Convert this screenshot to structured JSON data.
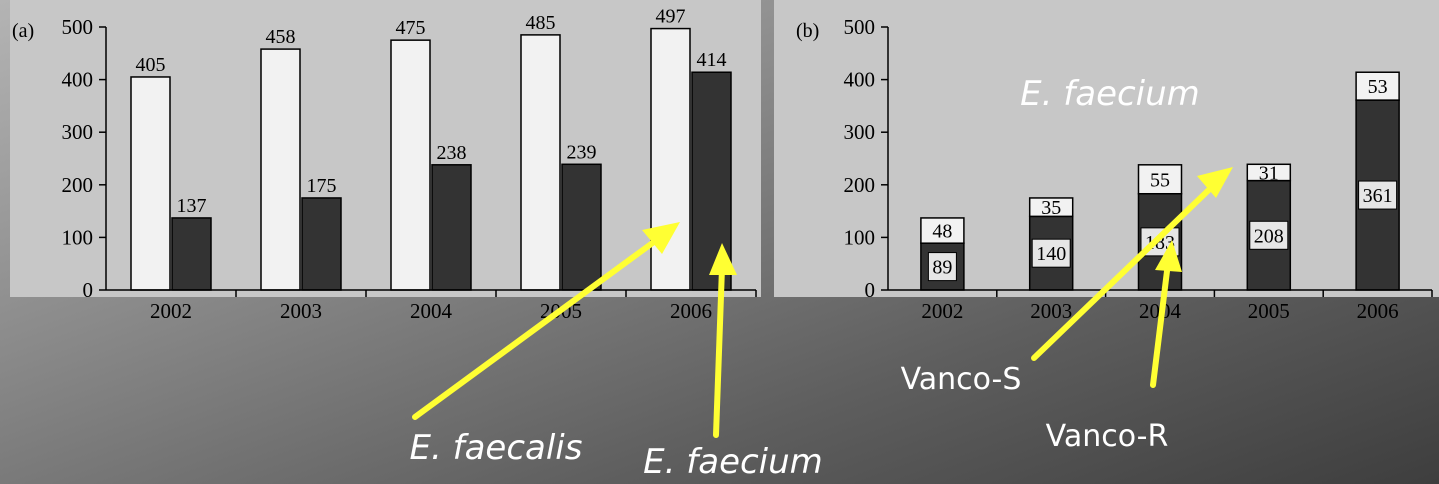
{
  "chart_data": [
    {
      "type": "bar",
      "panel_label": "(a)",
      "categories": [
        "2002",
        "2003",
        "2004",
        "2005",
        "2006"
      ],
      "series": [
        {
          "name": "E. faecalis",
          "values": [
            405,
            458,
            475,
            485,
            497
          ],
          "color": "#f2f2f2"
        },
        {
          "name": "E. faecium",
          "values": [
            137,
            175,
            238,
            239,
            414
          ],
          "color": "#333333"
        }
      ],
      "yticks": [
        0,
        100,
        200,
        300,
        400,
        500
      ],
      "ylim": [
        0,
        500
      ],
      "grid": false,
      "data_labels": true
    },
    {
      "type": "bar",
      "stacked": true,
      "panel_label": "(b)",
      "title": "E. faecium",
      "categories": [
        "2002",
        "2003",
        "2004",
        "2005",
        "2006"
      ],
      "series": [
        {
          "name": "Vanco-R",
          "values": [
            89,
            140,
            183,
            208,
            361
          ],
          "color": "#333333"
        },
        {
          "name": "Vanco-S",
          "values": [
            48,
            35,
            55,
            31,
            53
          ],
          "color": "#f2f2f2"
        }
      ],
      "yticks": [
        0,
        100,
        200,
        300,
        400,
        500
      ],
      "ylim": [
        0,
        500
      ],
      "grid": false,
      "data_labels": true
    }
  ],
  "annotations": {
    "faecalis_label": "E. faecalis",
    "faecium_label": "E. faecium",
    "vanco_s_label": "Vanco-S",
    "vanco_r_label": "Vanco-R",
    "arrow_color": "#ffff33"
  }
}
